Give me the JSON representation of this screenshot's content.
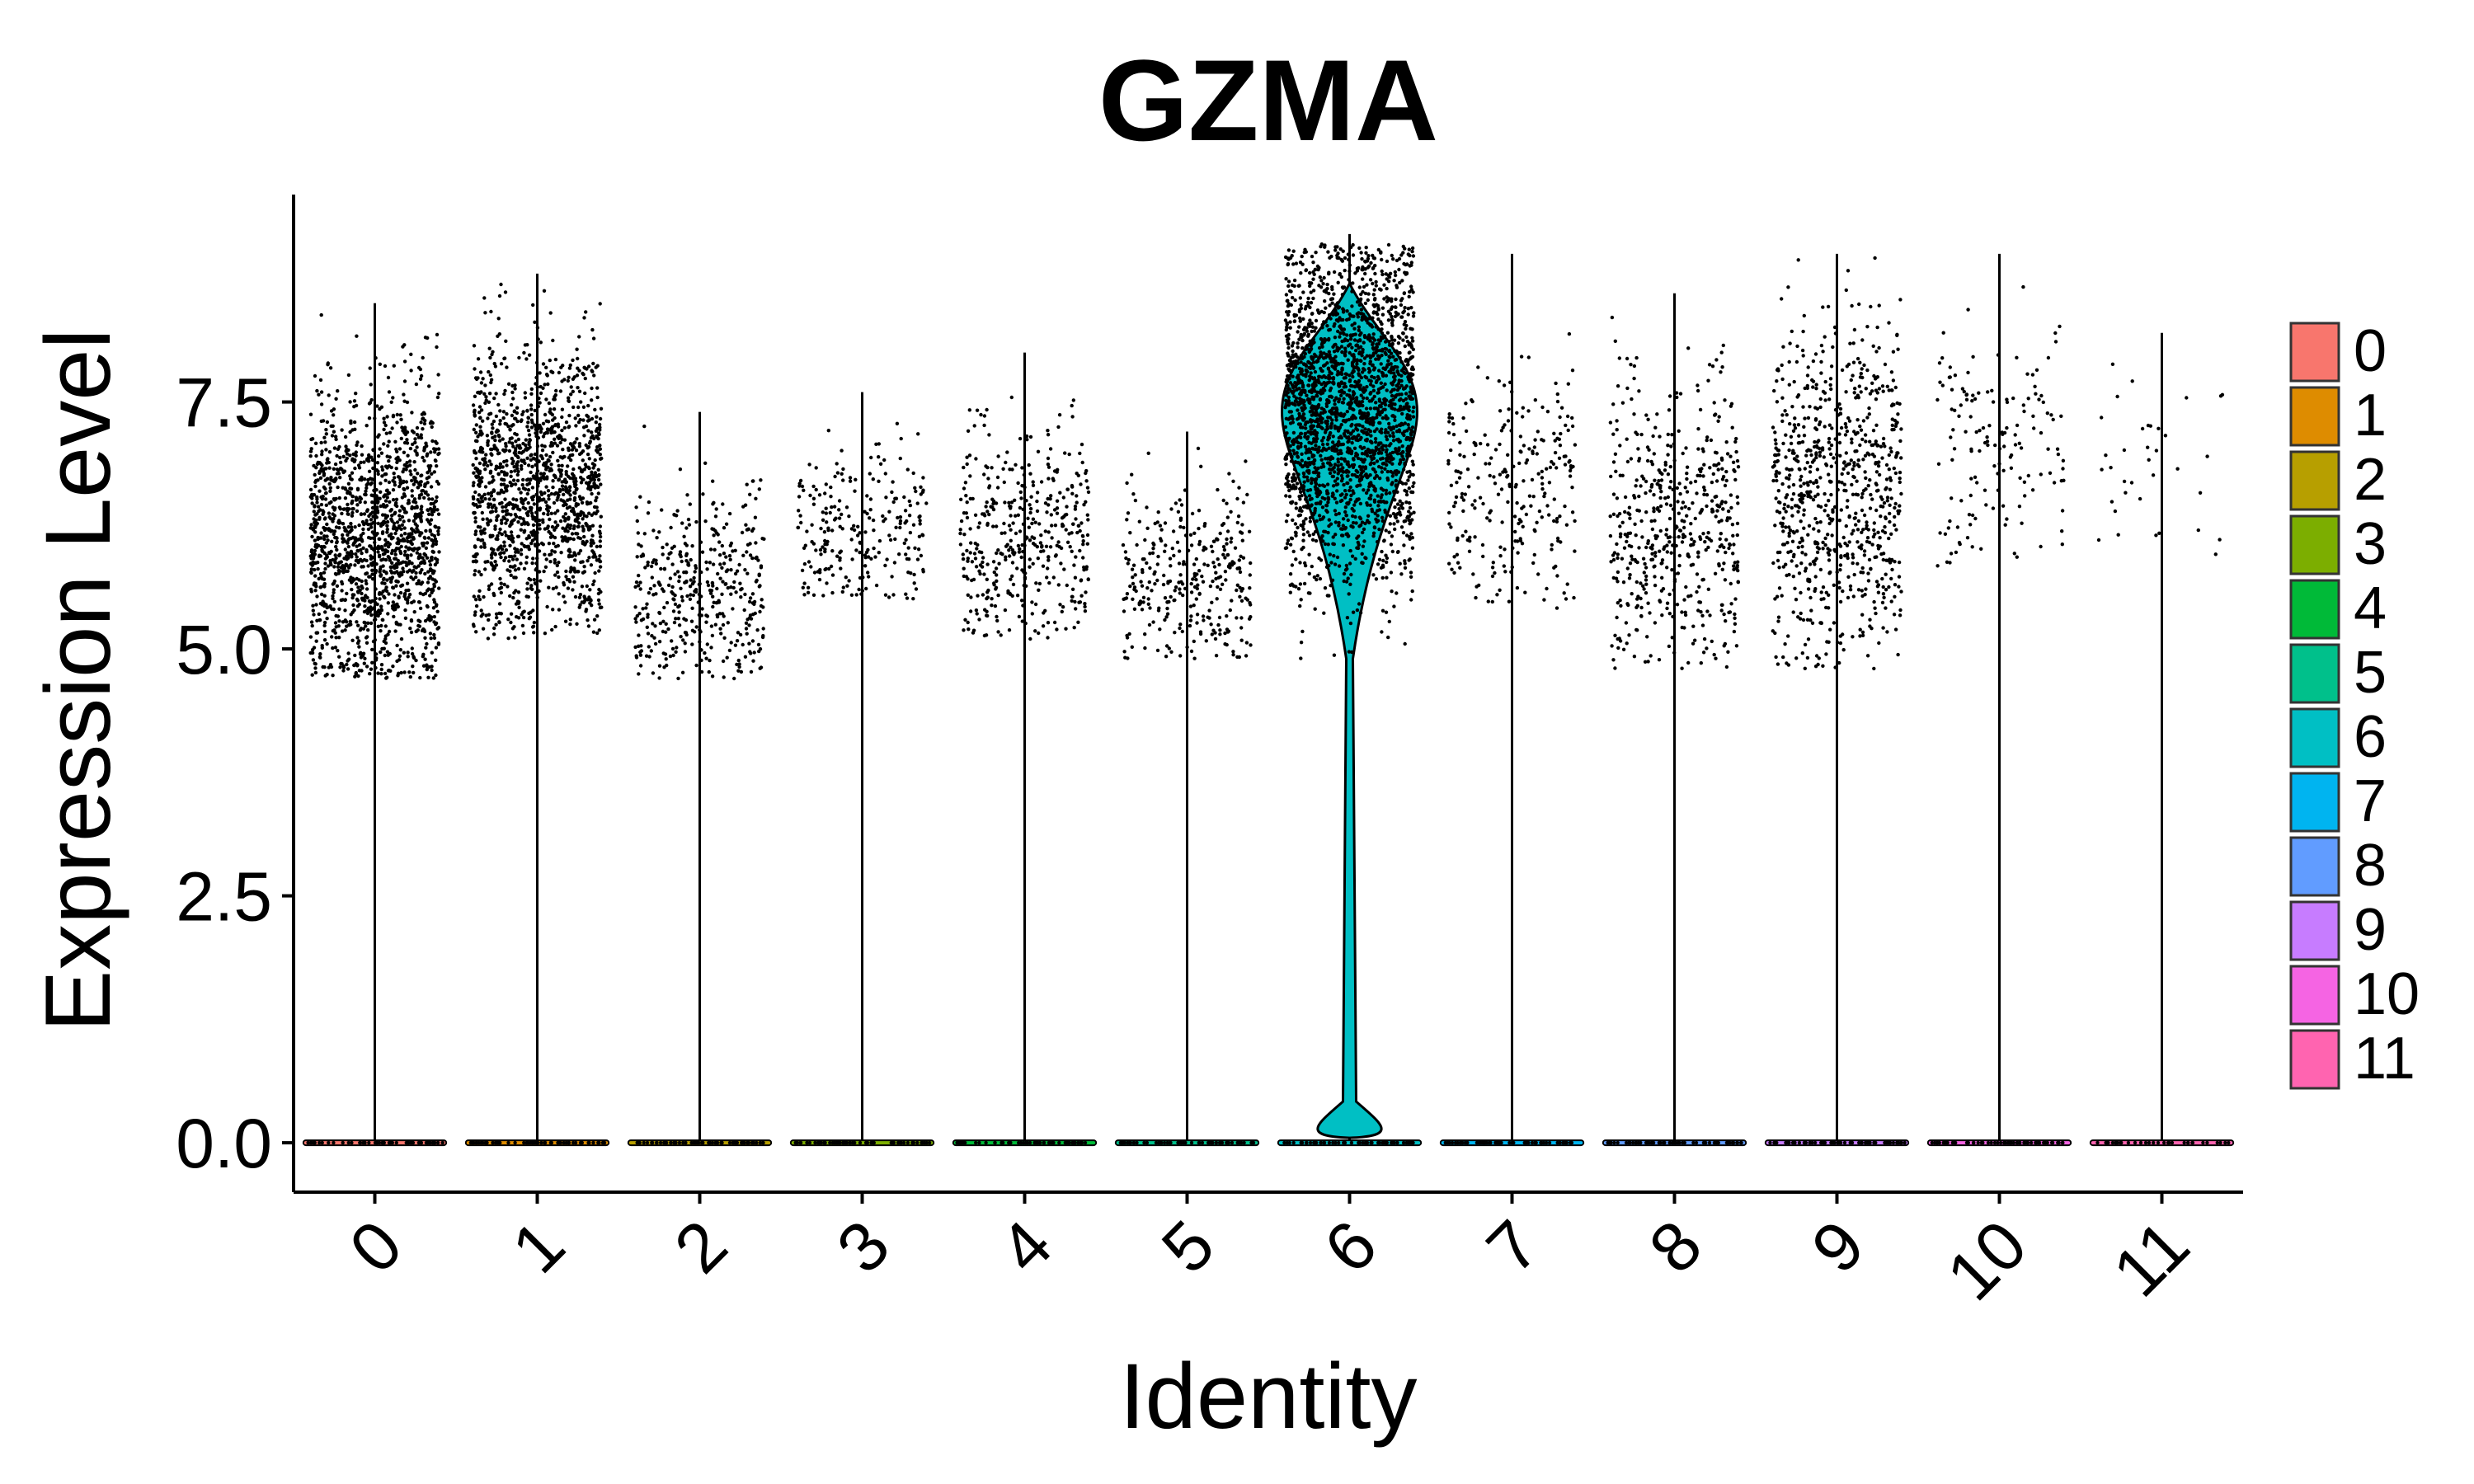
{
  "chart_data": {
    "type": "violin",
    "title": "GZMA",
    "xlabel": "Identity",
    "ylabel": "Expression Level",
    "ylim": [
      -0.5,
      9.6
    ],
    "y_ticks": [
      "0.0",
      "2.5",
      "5.0",
      "7.5"
    ],
    "y_tick_values": [
      0.0,
      2.5,
      5.0,
      7.5
    ],
    "categories": [
      "0",
      "1",
      "2",
      "3",
      "4",
      "5",
      "6",
      "7",
      "8",
      "9",
      "10",
      "11"
    ],
    "series": [
      {
        "category": "0",
        "color": "#F8766D",
        "max": 8.5,
        "point_min": 4.7,
        "point_max": 8.4,
        "point_center": 6.1,
        "point_count": 1600
      },
      {
        "category": "1",
        "color": "#DE8C00",
        "max": 8.8,
        "point_min": 5.1,
        "point_max": 8.7,
        "point_center": 6.6,
        "point_count": 1400
      },
      {
        "category": "2",
        "color": "#B79F00",
        "max": 7.4,
        "point_min": 4.7,
        "point_max": 7.3,
        "point_center": 5.6,
        "point_count": 420
      },
      {
        "category": "3",
        "color": "#7CAE00",
        "max": 7.6,
        "point_min": 5.5,
        "point_max": 7.6,
        "point_center": 6.2,
        "point_count": 240
      },
      {
        "category": "4",
        "color": "#00BA38",
        "max": 8.0,
        "point_min": 5.1,
        "point_max": 7.9,
        "point_center": 6.1,
        "point_count": 420
      },
      {
        "category": "5",
        "color": "#00C08B",
        "max": 7.2,
        "point_min": 4.9,
        "point_max": 7.2,
        "point_center": 5.7,
        "point_count": 320
      },
      {
        "category": "6",
        "color": "#00BFC4",
        "max": 9.2,
        "point_min": 4.9,
        "point_max": 9.1,
        "point_center": 7.4,
        "point_count": 2400
      },
      {
        "category": "7",
        "color": "#00B4F0",
        "max": 9.0,
        "point_min": 5.4,
        "point_max": 8.4,
        "point_center": 6.7,
        "point_count": 260
      },
      {
        "category": "8",
        "color": "#619CFF",
        "max": 8.6,
        "point_min": 4.8,
        "point_max": 8.5,
        "point_center": 6.2,
        "point_count": 520
      },
      {
        "category": "9",
        "color": "#C77CFF",
        "max": 9.0,
        "point_min": 4.8,
        "point_max": 9.0,
        "point_center": 6.6,
        "point_count": 780
      },
      {
        "category": "10",
        "color": "#F564E3",
        "max": 9.0,
        "point_min": 5.8,
        "point_max": 8.9,
        "point_center": 7.0,
        "point_count": 150
      },
      {
        "category": "11",
        "color": "#FF64B0",
        "max": 8.2,
        "point_min": 5.7,
        "point_max": 8.1,
        "point_center": 6.7,
        "point_count": 36
      }
    ],
    "legend": {
      "position": "right",
      "items": [
        {
          "label": "0",
          "color": "#F8766D"
        },
        {
          "label": "1",
          "color": "#DE8C00"
        },
        {
          "label": "2",
          "color": "#B79F00"
        },
        {
          "label": "3",
          "color": "#7CAE00"
        },
        {
          "label": "4",
          "color": "#00BA38"
        },
        {
          "label": "5",
          "color": "#00C08B"
        },
        {
          "label": "6",
          "color": "#00BFC4"
        },
        {
          "label": "7",
          "color": "#00B4F0"
        },
        {
          "label": "8",
          "color": "#619CFF"
        },
        {
          "label": "9",
          "color": "#C77CFF"
        },
        {
          "label": "10",
          "color": "#F564E3"
        },
        {
          "label": "11",
          "color": "#FF64B0"
        }
      ]
    },
    "grid": false
  }
}
